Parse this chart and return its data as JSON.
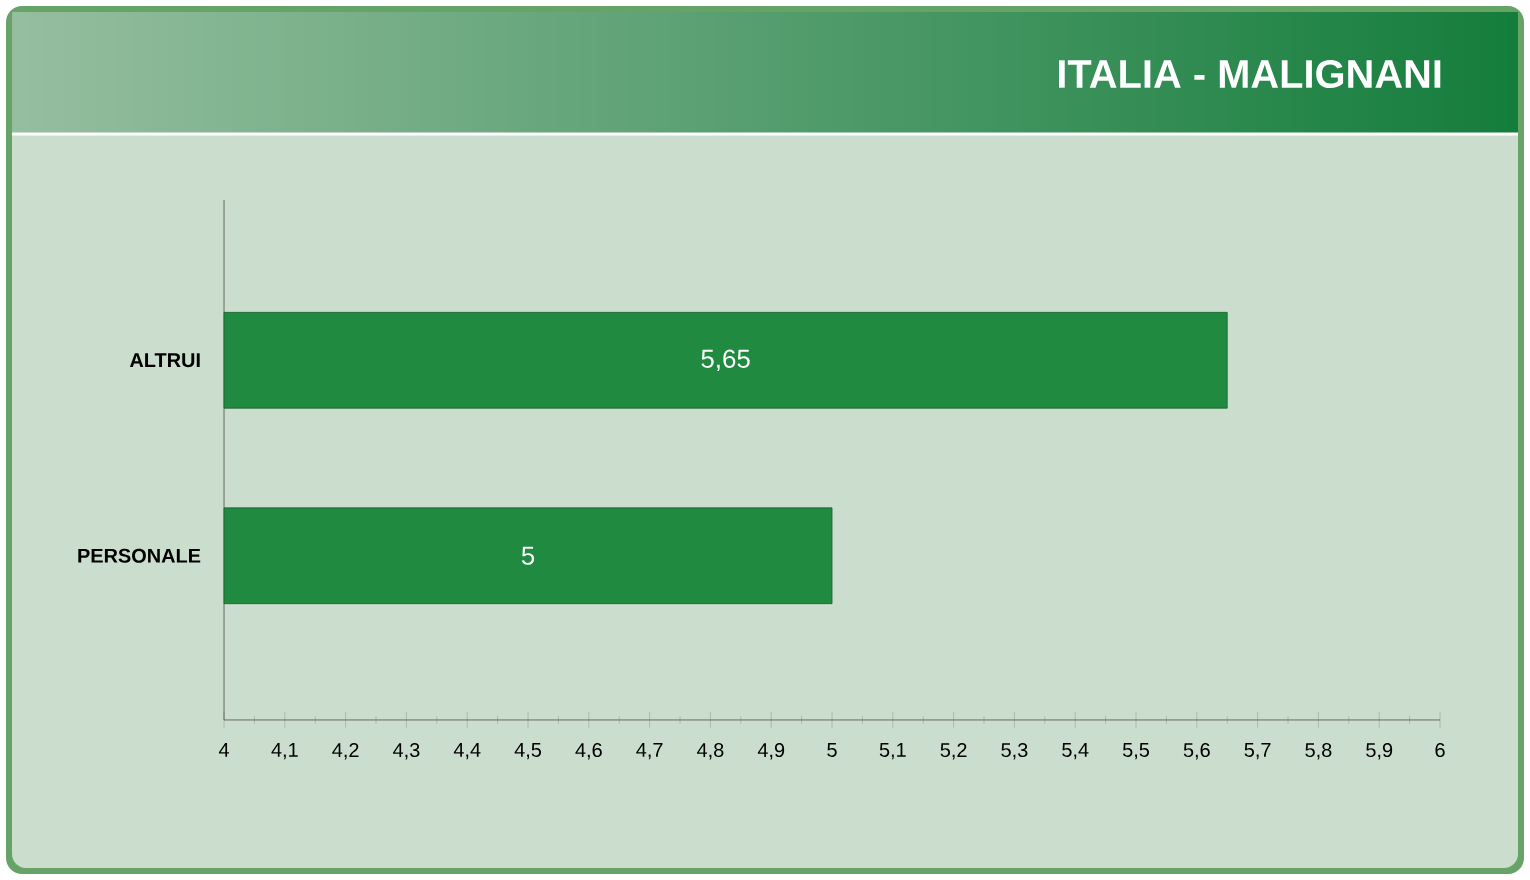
{
  "chart_data": {
    "type": "bar",
    "orientation": "horizontal",
    "title": "ITALIA - MALIGNANI",
    "categories": [
      "ALTRUI",
      "PERSONALE"
    ],
    "values": [
      5.65,
      5
    ],
    "value_labels": [
      "5,65",
      "5"
    ],
    "color": "#1f8a40",
    "xlim": [
      4,
      6
    ],
    "xticks": [
      4,
      {
        "value": 4.1,
        "label": "4,1"
      },
      {
        "value": 4.2,
        "label": "4,2"
      },
      {
        "value": 4.3,
        "label": "4,3"
      },
      {
        "value": 4.4,
        "label": "4,4"
      },
      {
        "value": 4.5,
        "label": "4,5"
      },
      {
        "value": 4.6,
        "label": "4,6"
      },
      {
        "value": 4.7,
        "label": "4,7"
      },
      {
        "value": 4.8,
        "label": "4,8"
      },
      {
        "value": 4.9,
        "label": "4,9"
      },
      5,
      {
        "value": 5.1,
        "label": "5,1"
      },
      {
        "value": 5.2,
        "label": "5,2"
      },
      {
        "value": 5.3,
        "label": "5,3"
      },
      {
        "value": 5.4,
        "label": "5,4"
      },
      {
        "value": 5.5,
        "label": "5,5"
      },
      {
        "value": 5.6,
        "label": "5,6"
      },
      {
        "value": 5.7,
        "label": "5,7"
      },
      {
        "value": 5.8,
        "label": "5,8"
      },
      {
        "value": 5.9,
        "label": "5,9"
      },
      6
    ]
  }
}
